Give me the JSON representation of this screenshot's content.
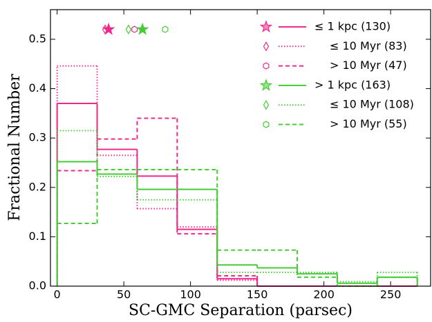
{
  "chart_data": {
    "type": "step-histogram",
    "xlabel": "SC-GMC Separation (parsec)",
    "ylabel": "Fractional Number",
    "bins": [
      0,
      30,
      60,
      90,
      120,
      150,
      180,
      210,
      240,
      270
    ],
    "xlim": [
      -5,
      280
    ],
    "ylim": [
      0,
      0.56
    ],
    "xticks": [
      0,
      50,
      100,
      150,
      200,
      250
    ],
    "yticks": [
      {
        "value": 0,
        "label": "0.0"
      },
      0.1,
      0.2,
      0.3,
      0.4,
      0.5
    ],
    "marker_y": 0.52,
    "legend": "upper right",
    "series": [
      {
        "name": "≤ 1 kpc (130)",
        "color": "#f0288c",
        "linestyle": "solid",
        "marker": "star",
        "marker_x": 38.6,
        "values": [
          0.37,
          0.277,
          0.223,
          0.115,
          0.015,
          0,
          0,
          0,
          0
        ]
      },
      {
        "name": "≤ 10 Myr (83)",
        "color": "#f0288c",
        "linestyle": "dotted",
        "marker": "diamond",
        "marker_x": 36,
        "values": [
          0.446,
          0.265,
          0.157,
          0.12,
          0.012,
          0,
          0,
          0,
          0
        ]
      },
      {
        "name": "> 10 Myr (47)",
        "color": "#f0288c",
        "linestyle": "dashed",
        "marker": "hexagon",
        "marker_x": 58,
        "values": [
          0.234,
          0.298,
          0.34,
          0.106,
          0.021,
          0,
          0,
          0,
          0
        ]
      },
      {
        "name": "> 1 kpc (163)",
        "color": "#44cc33",
        "linestyle": "solid",
        "marker": "star",
        "marker_x": 64,
        "values": [
          0.252,
          0.227,
          0.196,
          0.196,
          0.043,
          0.037,
          0.025,
          0.006,
          0.018
        ]
      },
      {
        "name": "≤ 10 Myr (108)",
        "color": "#44cc33",
        "linestyle": "dotted",
        "marker": "diamond",
        "marker_x": 53.5,
        "values": [
          0.315,
          0.222,
          0.175,
          0.175,
          0.028,
          0.028,
          0.028,
          0.009,
          0.028
        ]
      },
      {
        "name": "> 10 Myr (55)",
        "color": "#44cc33",
        "linestyle": "dashed",
        "marker": "hexagon",
        "marker_x": 81,
        "values": [
          0.127,
          0.236,
          0.236,
          0.236,
          0.073,
          0.073,
          0.018,
          0,
          0.018
        ]
      }
    ]
  }
}
